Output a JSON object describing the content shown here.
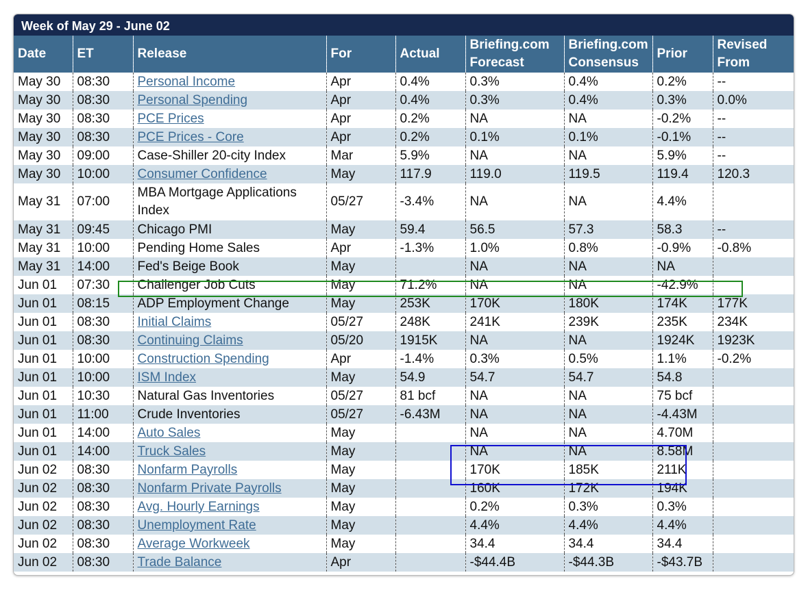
{
  "title": "Week of May 29 - June 02",
  "headers": {
    "date": "Date",
    "et": "ET",
    "release": "Release",
    "for": "For",
    "actual": "Actual",
    "forecast_1": "Briefing.com",
    "forecast_2": "Forecast",
    "consensus_1": "Briefing.com",
    "consensus_2": "Consensus",
    "prior": "Prior",
    "revised_1": "Revised",
    "revised_2": "From"
  },
  "rows": [
    {
      "date": "May 30",
      "et": "08:30",
      "release": "Personal Income",
      "for": "Apr",
      "actual": "0.4%",
      "forecast": "0.3%",
      "consensus": "0.4%",
      "prior": "0.2%",
      "revised": "--"
    },
    {
      "date": "May 30",
      "et": "08:30",
      "release": "Personal Spending",
      "for": "Apr",
      "actual": "0.4%",
      "forecast": "0.3%",
      "consensus": "0.4%",
      "prior": "0.3%",
      "revised": "0.0%"
    },
    {
      "date": "May 30",
      "et": "08:30",
      "release": "PCE Prices",
      "for": "Apr",
      "actual": "0.2%",
      "forecast": "NA",
      "consensus": "NA",
      "prior": "-0.2%",
      "revised": "--"
    },
    {
      "date": "May 30",
      "et": "08:30",
      "release": "PCE Prices - Core",
      "for": "Apr",
      "actual": "0.2%",
      "forecast": "0.1%",
      "consensus": "0.1%",
      "prior": "-0.1%",
      "revised": "--"
    },
    {
      "date": "May 30",
      "et": "09:00",
      "release": "Case-Shiller 20-city Index",
      "for": "Mar",
      "actual": "5.9%",
      "forecast": "NA",
      "consensus": "NA",
      "prior": "5.9%",
      "revised": "--"
    },
    {
      "date": "May 30",
      "et": "10:00",
      "release": "Consumer Confidence",
      "for": "May",
      "actual": "117.9",
      "forecast": "119.0",
      "consensus": "119.5",
      "prior": "119.4",
      "revised": "120.3"
    },
    {
      "date": "May 31",
      "et": "07:00",
      "release": "MBA Mortgage Applications Index",
      "for": "05/27",
      "actual": "-3.4%",
      "forecast": "NA",
      "consensus": "NA",
      "prior": "4.4%",
      "revised": ""
    },
    {
      "date": "May 31",
      "et": "09:45",
      "release": "Chicago PMI",
      "for": "May",
      "actual": "59.4",
      "forecast": "56.5",
      "consensus": "57.3",
      "prior": "58.3",
      "revised": "--"
    },
    {
      "date": "May 31",
      "et": "10:00",
      "release": "Pending Home Sales",
      "for": "Apr",
      "actual": "-1.3%",
      "forecast": "1.0%",
      "consensus": "0.8%",
      "prior": "-0.9%",
      "revised": "-0.8%"
    },
    {
      "date": "May 31",
      "et": "14:00",
      "release": "Fed's Beige Book",
      "for": "May",
      "actual": "",
      "forecast": "NA",
      "consensus": "NA",
      "prior": "NA",
      "revised": ""
    },
    {
      "date": "Jun 01",
      "et": "07:30",
      "release": "Challenger Job Cuts",
      "for": "May",
      "actual": "71.2%",
      "forecast": "NA",
      "consensus": "NA",
      "prior": "-42.9%",
      "revised": ""
    },
    {
      "date": "Jun 01",
      "et": "08:15",
      "release": "ADP Employment Change",
      "for": "May",
      "actual": "253K",
      "forecast": "170K",
      "consensus": "180K",
      "prior": "174K",
      "revised": "177K"
    },
    {
      "date": "Jun 01",
      "et": "08:30",
      "release": "Initial Claims",
      "for": "05/27",
      "actual": "248K",
      "forecast": "241K",
      "consensus": "239K",
      "prior": "235K",
      "revised": "234K"
    },
    {
      "date": "Jun 01",
      "et": "08:30",
      "release": "Continuing Claims",
      "for": "05/20",
      "actual": "1915K",
      "forecast": "NA",
      "consensus": "NA",
      "prior": "1924K",
      "revised": "1923K"
    },
    {
      "date": "Jun 01",
      "et": "10:00",
      "release": "Construction Spending",
      "for": "Apr",
      "actual": "-1.4%",
      "forecast": "0.3%",
      "consensus": "0.5%",
      "prior": "1.1%",
      "revised": "-0.2%"
    },
    {
      "date": "Jun 01",
      "et": "10:00",
      "release": "ISM Index",
      "for": "May",
      "actual": "54.9",
      "forecast": "54.7",
      "consensus": "54.7",
      "prior": "54.8",
      "revised": ""
    },
    {
      "date": "Jun 01",
      "et": "10:30",
      "release": "Natural Gas Inventories",
      "for": "05/27",
      "actual": "81 bcf",
      "forecast": "NA",
      "consensus": "NA",
      "prior": "75 bcf",
      "revised": ""
    },
    {
      "date": "Jun 01",
      "et": "11:00",
      "release": "Crude Inventories",
      "for": "05/27",
      "actual": "-6.43M",
      "forecast": "NA",
      "consensus": "NA",
      "prior": "-4.43M",
      "revised": ""
    },
    {
      "date": "Jun 01",
      "et": "14:00",
      "release": "Auto Sales",
      "for": "May",
      "actual": "",
      "forecast": "NA",
      "consensus": "NA",
      "prior": "4.70M",
      "revised": ""
    },
    {
      "date": "Jun 01",
      "et": "14:00",
      "release": "Truck Sales",
      "for": "May",
      "actual": "",
      "forecast": "NA",
      "consensus": "NA",
      "prior": "8.58M",
      "revised": ""
    },
    {
      "date": "Jun 02",
      "et": "08:30",
      "release": "Nonfarm Payrolls",
      "for": "May",
      "actual": "",
      "forecast": "170K",
      "consensus": "185K",
      "prior": "211K",
      "revised": ""
    },
    {
      "date": "Jun 02",
      "et": "08:30",
      "release": "Nonfarm Private Payrolls",
      "for": "May",
      "actual": "",
      "forecast": "160K",
      "consensus": "172K",
      "prior": "194K",
      "revised": ""
    },
    {
      "date": "Jun 02",
      "et": "08:30",
      "release": "Avg. Hourly Earnings",
      "for": "May",
      "actual": "",
      "forecast": "0.2%",
      "consensus": "0.3%",
      "prior": "0.3%",
      "revised": ""
    },
    {
      "date": "Jun 02",
      "et": "08:30",
      "release": "Unemployment Rate",
      "for": "May",
      "actual": "",
      "forecast": "4.4%",
      "consensus": "4.4%",
      "prior": "4.4%",
      "revised": ""
    },
    {
      "date": "Jun 02",
      "et": "08:30",
      "release": "Average Workweek",
      "for": "May",
      "actual": "",
      "forecast": "34.4",
      "consensus": "34.4",
      "prior": "34.4",
      "revised": ""
    },
    {
      "date": "Jun 02",
      "et": "08:30",
      "release": "Trade Balance",
      "for": "Apr",
      "actual": "",
      "forecast": "-$44.4B",
      "consensus": "-$44.3B",
      "prior": "-$43.7B",
      "revised": ""
    }
  ],
  "colors": {
    "title_bg": "#17294f",
    "header_bg": "#3e6b8f",
    "row_alt_bg": "#d2dfe8",
    "link": "#3f6d96",
    "highlight_green": "#1f8a1f",
    "highlight_blue": "#1010d0"
  }
}
